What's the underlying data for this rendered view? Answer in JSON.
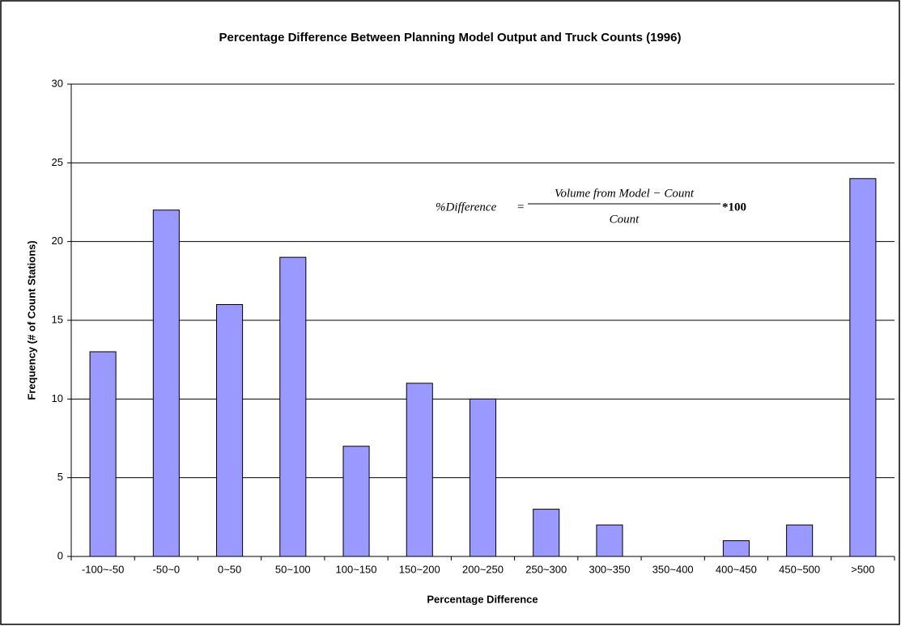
{
  "chart_data": {
    "type": "bar",
    "title": "Percentage Difference Between Planning Model Output and Truck Counts (1996)",
    "x_label": "Percentage Difference",
    "y_label": "Frequency (# of Count Stations)",
    "categories": [
      "-100~-50",
      "-50~0",
      "0~50",
      "50~100",
      "100~150",
      "150~200",
      "200~250",
      "250~300",
      "300~350",
      "350~400",
      "400~450",
      "450~500",
      ">500"
    ],
    "values": [
      13,
      22,
      16,
      19,
      7,
      11,
      10,
      3,
      2,
      0,
      1,
      2,
      24
    ],
    "color": "#9999ff",
    "ylim": [
      0,
      30
    ],
    "yticks": [
      0,
      5,
      10,
      15,
      20,
      25,
      30
    ],
    "grid": true,
    "annotation": {
      "lhs": "%Difference",
      "equals": "=",
      "numerator": "Volume  from Model − Count",
      "denominator": "Count",
      "factor": "*100"
    }
  }
}
